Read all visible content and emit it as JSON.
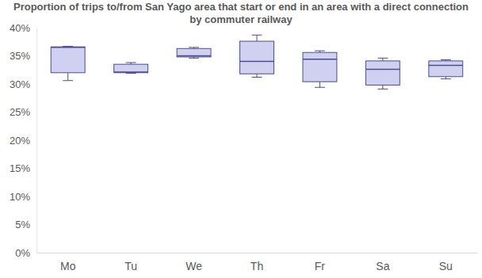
{
  "chart_data": {
    "type": "box",
    "title": "Proportion of trips to/from San Yago area that start or end in an area with a direct connection by commuter railway",
    "categories": [
      "Mo",
      "Tu",
      "We",
      "Th",
      "Fr",
      "Sa",
      "Su"
    ],
    "min": [
      30.6,
      31.9,
      34.6,
      31.2,
      29.4,
      29.1,
      30.9
    ],
    "q1": [
      32.0,
      32.0,
      34.8,
      31.8,
      30.4,
      29.8,
      31.3
    ],
    "median": [
      36.5,
      32.1,
      35.0,
      34.0,
      34.4,
      32.6,
      33.3
    ],
    "q3": [
      36.6,
      33.5,
      36.3,
      37.6,
      35.6,
      34.1,
      34.1
    ],
    "max": [
      36.7,
      33.8,
      36.5,
      38.7,
      35.9,
      34.6,
      34.3
    ],
    "color": "#d0d0f0",
    "ylim": [
      0,
      40
    ],
    "yticks": [
      {
        "value": 0,
        "label": "0%"
      },
      {
        "value": 5,
        "label": "5%"
      },
      {
        "value": 10,
        "label": "10%"
      },
      {
        "value": 15,
        "label": "15%"
      },
      {
        "value": 20,
        "label": "20%"
      },
      {
        "value": 25,
        "label": "25%"
      },
      {
        "value": 30,
        "label": "30%"
      },
      {
        "value": 35,
        "label": "35%"
      },
      {
        "value": 40,
        "label": "40%"
      }
    ],
    "grid": false
  }
}
